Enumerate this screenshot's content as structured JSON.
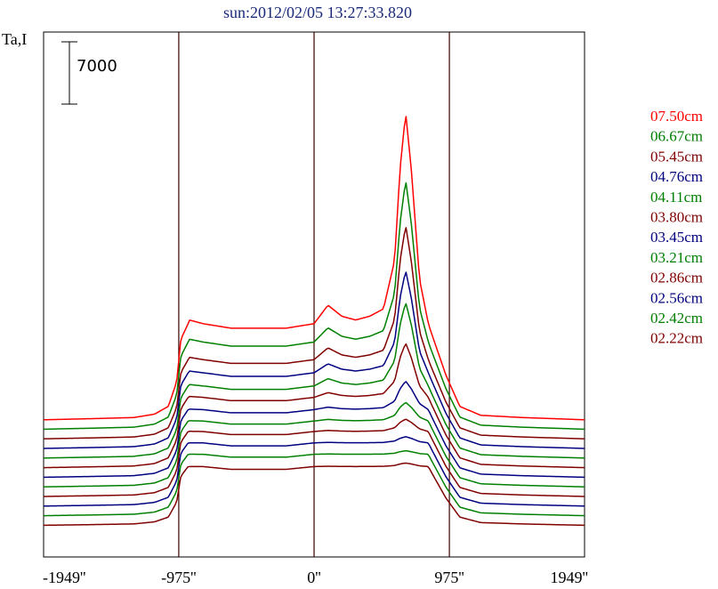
{
  "chart_data": {
    "type": "line",
    "title": "sun:2012/02/05 13:27:33.820",
    "ylabel": "Ta,I",
    "xlabel": "",
    "scale_bar_label": "7000",
    "scale_bar_value": 7000,
    "xlim": [
      -1949,
      1949
    ],
    "x_ticks": [
      {
        "value": -1949,
        "label": "-1949''"
      },
      {
        "value": -975,
        "label": "-975''"
      },
      {
        "value": 0,
        "label": "0''"
      },
      {
        "value": 975,
        "label": "975''"
      },
      {
        "value": 1949,
        "label": "1949''"
      }
    ],
    "vertical_lines": [
      -975,
      0,
      975
    ],
    "profile_shape": {
      "x": [
        -1949,
        -1600,
        -1300,
        -1150,
        -1050,
        -990,
        -960,
        -900,
        -800,
        -600,
        -400,
        -200,
        0,
        100,
        200,
        300,
        400,
        500,
        580,
        620,
        660,
        700,
        760,
        850,
        950,
        1050,
        1200,
        1500,
        1949
      ],
      "shape": [
        0.0,
        0.005,
        0.01,
        0.025,
        0.06,
        0.17,
        0.36,
        0.44,
        0.43,
        0.41,
        0.41,
        0.41,
        0.43,
        0.48,
        0.45,
        0.44,
        0.45,
        0.47,
        0.6,
        0.85,
        1.0,
        0.85,
        0.55,
        0.38,
        0.2,
        0.06,
        0.02,
        0.01,
        0.0
      ]
    },
    "series": [
      {
        "name": "07.50cm",
        "color": "#ff0000",
        "baseline": 1420,
        "disk_level": 10800,
        "peak_level": 34500
      },
      {
        "name": "06.67cm",
        "color": "#008000",
        "baseline": 360,
        "disk_level": 9800,
        "peak_level": 28000
      },
      {
        "name": "05.45cm",
        "color": "#800000",
        "baseline": -720,
        "disk_level": 8900,
        "peak_level": 24000
      },
      {
        "name": "04.76cm",
        "color": "#000080",
        "baseline": -1800,
        "disk_level": 8500,
        "peak_level": 20000
      },
      {
        "name": "04.11cm",
        "color": "#008000",
        "baseline": -2880,
        "disk_level": 8100,
        "peak_level": 17500
      },
      {
        "name": "03.80cm",
        "color": "#800000",
        "baseline": -3960,
        "disk_level": 7900,
        "peak_level": 14000
      },
      {
        "name": "03.45cm",
        "color": "#000080",
        "baseline": -5040,
        "disk_level": 7600,
        "peak_level": 10800
      },
      {
        "name": "03.21cm",
        "color": "#008000",
        "baseline": -6120,
        "disk_level": 7400,
        "peak_level": 9500
      },
      {
        "name": "02.86cm",
        "color": "#800000",
        "baseline": -7200,
        "disk_level": 7300,
        "peak_level": 8700
      },
      {
        "name": "02.56cm",
        "color": "#000080",
        "baseline": -8280,
        "disk_level": 7100,
        "peak_level": 7800
      },
      {
        "name": "02.42cm",
        "color": "#008000",
        "baseline": -9360,
        "disk_level": 6900,
        "peak_level": 7300
      },
      {
        "name": "02.22cm",
        "color": "#800000",
        "baseline": -10440,
        "disk_level": 6600,
        "peak_level": 7000
      }
    ],
    "legend_position": "right",
    "grid": false
  }
}
